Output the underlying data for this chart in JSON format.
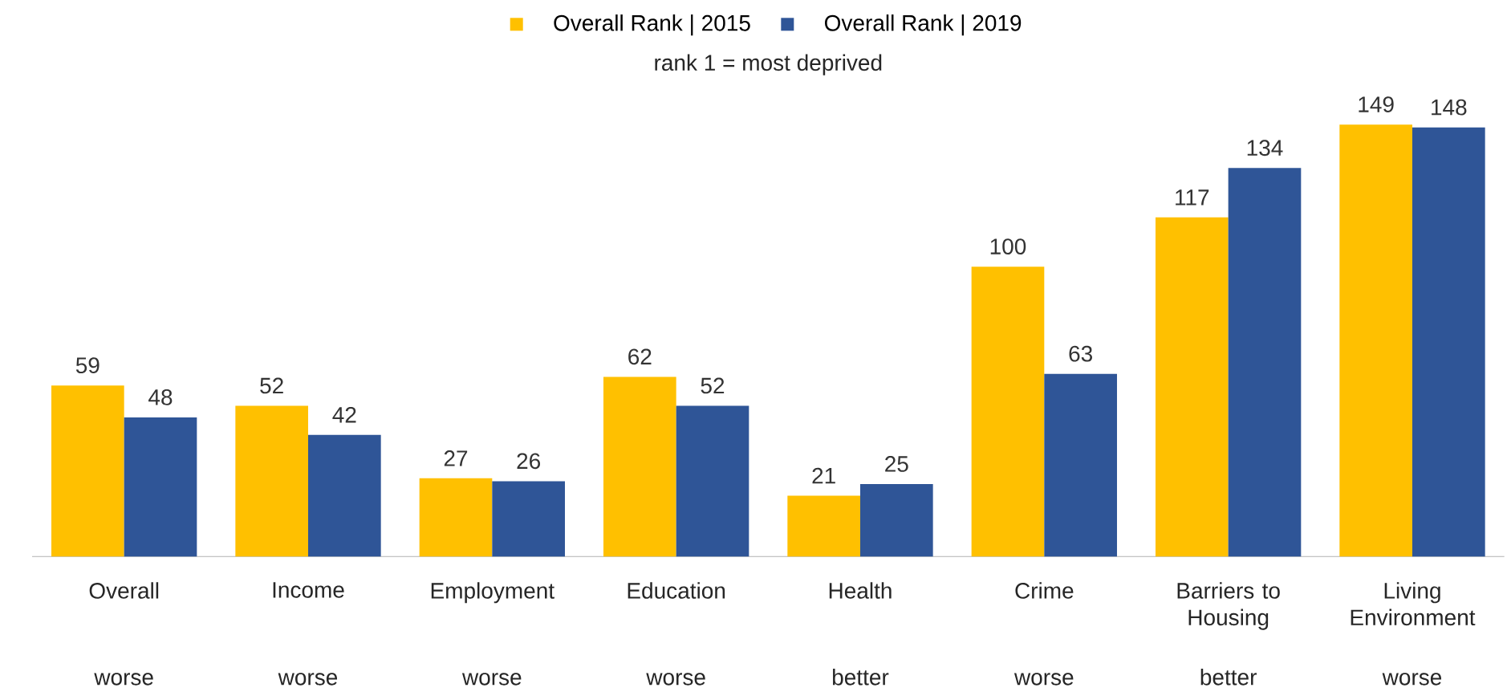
{
  "chart_data": {
    "type": "bar",
    "subtitle": "rank 1 = most deprived",
    "categories": [
      "Overall",
      "Income",
      "Employment",
      "Education",
      "Health",
      "Crime",
      "Barriers to Housing",
      "Living Environment"
    ],
    "series": [
      {
        "name": "Overall Rank | 2015",
        "color": "#ffc000",
        "values": [
          59,
          52,
          27,
          62,
          21,
          100,
          117,
          149
        ]
      },
      {
        "name": "Overall Rank | 2019",
        "color": "#2f5597",
        "values": [
          48,
          42,
          26,
          52,
          25,
          63,
          134,
          148
        ]
      }
    ],
    "annotations": [
      "worse",
      "worse",
      "worse",
      "worse",
      "better",
      "worse",
      "better",
      "worse"
    ],
    "data_labels": true,
    "legend": "top"
  }
}
